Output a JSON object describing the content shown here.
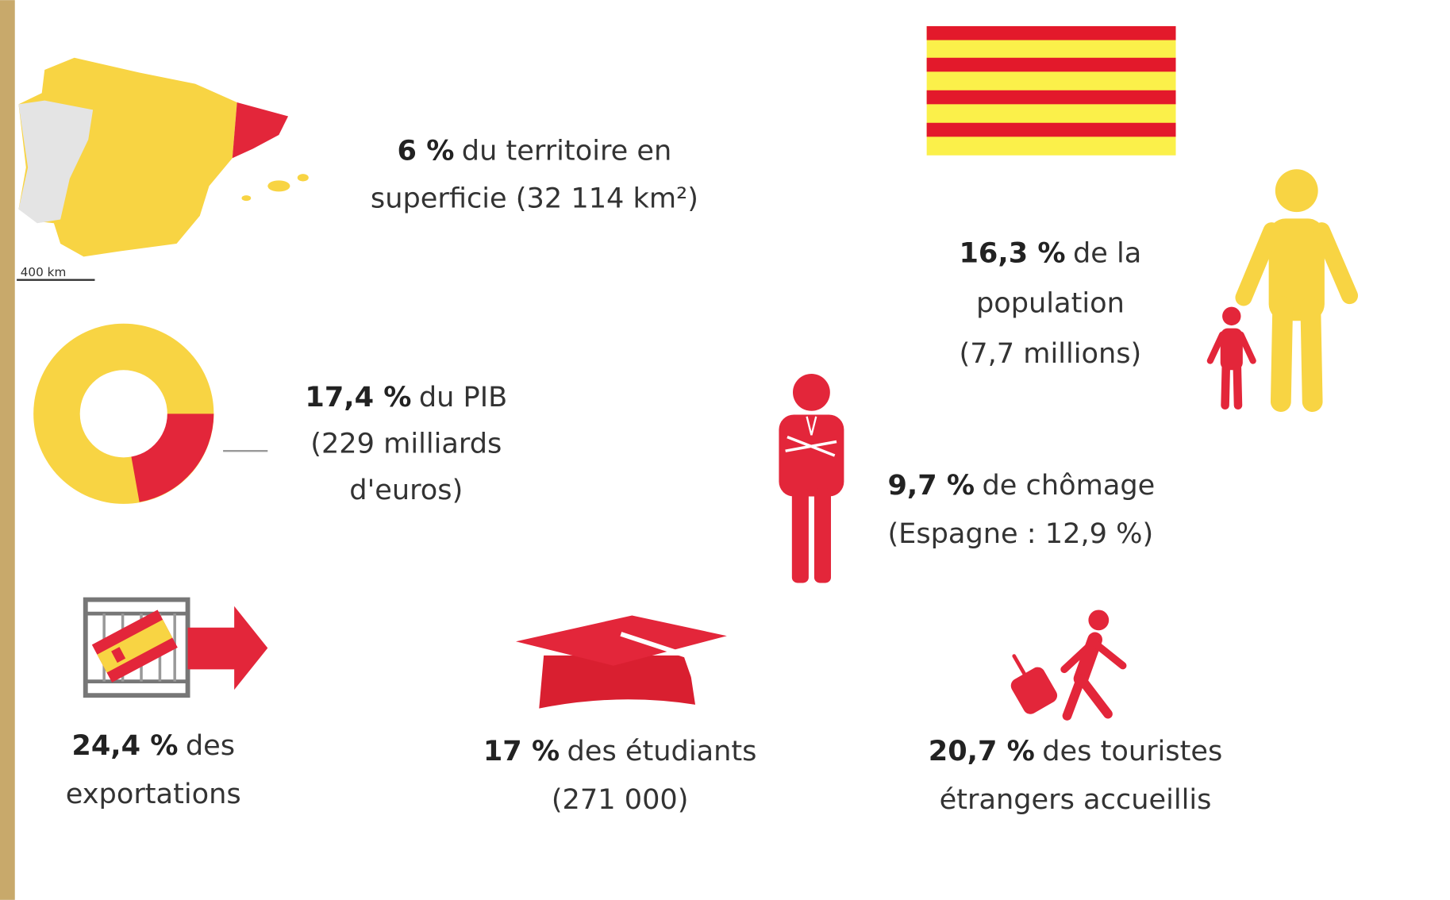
{
  "map": {
    "scale": "400 km"
  },
  "stats": [
    {
      "highlight": "6 %",
      "line1": "du territoire en",
      "rest": [
        "superficie (32 114 km²)"
      ]
    },
    {
      "highlight": "16,3 %",
      "line1": "de la",
      "rest": [
        "population",
        "(7,7 millions)"
      ]
    },
    {
      "highlight": "17,4 %",
      "line1": "du PIB",
      "rest": [
        "(229 milliards",
        "d'euros)"
      ]
    },
    {
      "highlight": "9,7 %",
      "line1": "de chômage",
      "rest": [
        "(Espagne : 12,9 %)"
      ]
    },
    {
      "highlight": "24,4 %",
      "line1": "des",
      "rest": [
        "exportations"
      ]
    },
    {
      "highlight": "17 %",
      "line1": "des étudiants",
      "rest": [
        "(271 000)"
      ]
    },
    {
      "highlight": "20,7 %",
      "line1": "des touristes",
      "rest": [
        "étrangers accueillis"
      ]
    }
  ]
}
